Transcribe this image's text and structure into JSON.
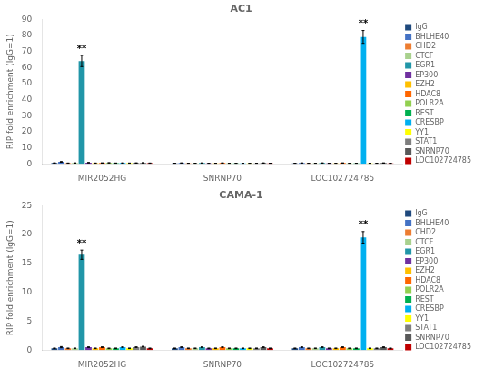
{
  "chart_data": [
    {
      "type": "bar",
      "title": "AC1",
      "ylabel": "RIP fold enrichment (IgG=1)",
      "categories": [
        "MIR2052HG",
        "SNRNP70",
        "LOC102724785"
      ],
      "series": [
        {
          "name": "IgG",
          "color": "#1f497d",
          "values": [
            0.5,
            0.3,
            0.3
          ],
          "errors": [
            0.1,
            0.05,
            0.05
          ]
        },
        {
          "name": "BHLHE40",
          "color": "#4472c4",
          "values": [
            1.2,
            0.5,
            0.5
          ],
          "errors": [
            0.2,
            0.05,
            0.05
          ]
        },
        {
          "name": "CHD2",
          "color": "#ed7d31",
          "values": [
            0.4,
            0.3,
            0.3
          ],
          "errors": [
            0.1,
            0.05,
            0.05
          ]
        },
        {
          "name": "CTCF",
          "color": "#a9d18e",
          "values": [
            0.5,
            0.3,
            0.3
          ],
          "errors": [
            0.1,
            0.05,
            0.05
          ]
        },
        {
          "name": "EGR1",
          "color": "#2196a8",
          "values": [
            64.0,
            0.5,
            0.5
          ],
          "errors": [
            3.5,
            0.05,
            0.05
          ]
        },
        {
          "name": "EP300",
          "color": "#7030a0",
          "values": [
            0.7,
            0.3,
            0.3
          ],
          "errors": [
            0.1,
            0.05,
            0.05
          ]
        },
        {
          "name": "EZH2",
          "color": "#ffc000",
          "values": [
            0.4,
            0.3,
            0.3
          ],
          "errors": [
            0.1,
            0.05,
            0.05
          ]
        },
        {
          "name": "HDAC8",
          "color": "#ff6600",
          "values": [
            0.5,
            0.5,
            0.5
          ],
          "errors": [
            0.1,
            0.05,
            0.05
          ]
        },
        {
          "name": "POLR2A",
          "color": "#92d050",
          "values": [
            0.6,
            0.3,
            0.3
          ],
          "errors": [
            0.1,
            0.05,
            0.05
          ]
        },
        {
          "name": "REST",
          "color": "#00b050",
          "values": [
            0.4,
            0.3,
            0.3
          ],
          "errors": [
            0.1,
            0.05,
            0.05
          ]
        },
        {
          "name": "CRESBP",
          "color": "#00b0f0",
          "values": [
            0.5,
            0.3,
            79.0
          ],
          "errors": [
            0.1,
            0.05,
            4.0
          ]
        },
        {
          "name": "YY1",
          "color": "#ffff00",
          "values": [
            0.4,
            0.3,
            0.3
          ],
          "errors": [
            0.1,
            0.05,
            0.05
          ]
        },
        {
          "name": "STAT1",
          "color": "#7f7f7f",
          "values": [
            0.5,
            0.3,
            0.3
          ],
          "errors": [
            0.1,
            0.05,
            0.05
          ]
        },
        {
          "name": "SNRNP70",
          "color": "#595959",
          "values": [
            0.6,
            0.5,
            0.5
          ],
          "errors": [
            0.1,
            0.05,
            0.05
          ]
        },
        {
          "name": "LOC102724785",
          "color": "#c00000",
          "values": [
            0.4,
            0.3,
            0.3
          ],
          "errors": [
            0.1,
            0.05,
            0.05
          ]
        }
      ],
      "ylim": [
        0,
        90
      ],
      "yticks": [
        0,
        10,
        20,
        30,
        40,
        50,
        60,
        70,
        80,
        90
      ],
      "grid": false,
      "legend": "right",
      "annotations": [
        {
          "text": "**",
          "category": "MIR2052HG",
          "series": "EGR1"
        },
        {
          "text": "**",
          "category": "LOC102724785",
          "series": "CRESBP"
        }
      ]
    },
    {
      "type": "bar",
      "title": "CAMA-1",
      "ylabel": "RIP fold enrichment (IgG=1)",
      "categories": [
        "MIR2052HG",
        "SNRNP70",
        "LOC102724785"
      ],
      "series": [
        {
          "name": "IgG",
          "color": "#1f497d",
          "values": [
            0.3,
            0.3,
            0.3
          ],
          "errors": [
            0.05,
            0.05,
            0.05
          ]
        },
        {
          "name": "BHLHE40",
          "color": "#4472c4",
          "values": [
            0.5,
            0.5,
            0.5
          ],
          "errors": [
            0.1,
            0.05,
            0.05
          ]
        },
        {
          "name": "CHD2",
          "color": "#ed7d31",
          "values": [
            0.3,
            0.3,
            0.3
          ],
          "errors": [
            0.05,
            0.05,
            0.05
          ]
        },
        {
          "name": "CTCF",
          "color": "#a9d18e",
          "values": [
            0.3,
            0.3,
            0.3
          ],
          "errors": [
            0.05,
            0.05,
            0.05
          ]
        },
        {
          "name": "EGR1",
          "color": "#2196a8",
          "values": [
            16.5,
            0.5,
            0.5
          ],
          "errors": [
            0.8,
            0.05,
            0.05
          ]
        },
        {
          "name": "EP300",
          "color": "#7030a0",
          "values": [
            0.5,
            0.3,
            0.3
          ],
          "errors": [
            0.05,
            0.05,
            0.05
          ]
        },
        {
          "name": "EZH2",
          "color": "#ffc000",
          "values": [
            0.3,
            0.3,
            0.3
          ],
          "errors": [
            0.05,
            0.05,
            0.05
          ]
        },
        {
          "name": "HDAC8",
          "color": "#ff6600",
          "values": [
            0.5,
            0.5,
            0.5
          ],
          "errors": [
            0.05,
            0.05,
            0.05
          ]
        },
        {
          "name": "POLR2A",
          "color": "#92d050",
          "values": [
            0.3,
            0.3,
            0.3
          ],
          "errors": [
            0.05,
            0.05,
            0.05
          ]
        },
        {
          "name": "REST",
          "color": "#00b050",
          "values": [
            0.3,
            0.3,
            0.3
          ],
          "errors": [
            0.05,
            0.05,
            0.05
          ]
        },
        {
          "name": "CRESBP",
          "color": "#00b0f0",
          "values": [
            0.5,
            0.3,
            19.5
          ],
          "errors": [
            0.05,
            0.05,
            1.0
          ]
        },
        {
          "name": "YY1",
          "color": "#ffff00",
          "values": [
            0.3,
            0.3,
            0.3
          ],
          "errors": [
            0.05,
            0.05,
            0.05
          ]
        },
        {
          "name": "STAT1",
          "color": "#7f7f7f",
          "values": [
            0.5,
            0.3,
            0.3
          ],
          "errors": [
            0.05,
            0.05,
            0.05
          ]
        },
        {
          "name": "SNRNP70",
          "color": "#595959",
          "values": [
            0.6,
            0.5,
            0.5
          ],
          "errors": [
            0.05,
            0.05,
            0.05
          ]
        },
        {
          "name": "LOC102724785",
          "color": "#c00000",
          "values": [
            0.3,
            0.3,
            0.3
          ],
          "errors": [
            0.05,
            0.05,
            0.05
          ]
        }
      ],
      "ylim": [
        0,
        25
      ],
      "yticks": [
        0,
        5,
        10,
        15,
        20,
        25
      ],
      "grid": false,
      "legend": "right",
      "annotations": [
        {
          "text": "**",
          "category": "MIR2052HG",
          "series": "EGR1"
        },
        {
          "text": "**",
          "category": "LOC102724785",
          "series": "CRESBP"
        }
      ]
    }
  ]
}
